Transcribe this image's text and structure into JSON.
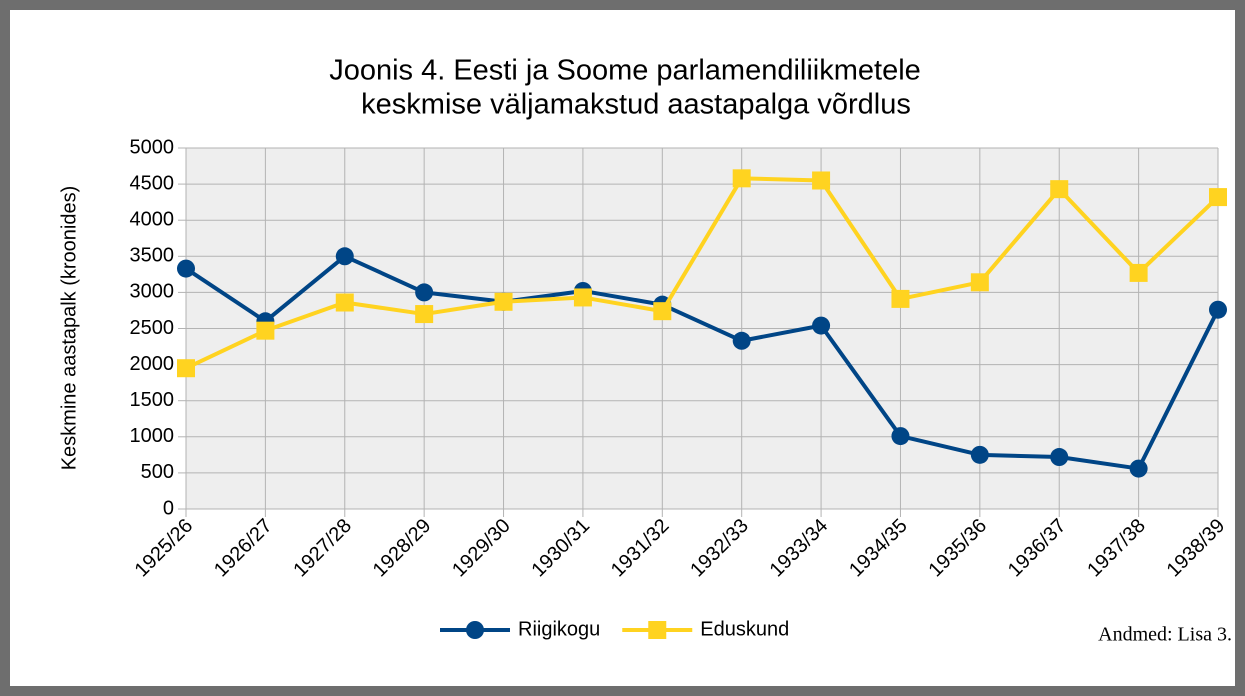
{
  "chart_data": {
    "type": "line",
    "title": [
      "Joonis 4. Eesti ja Soome parlamendiliikmetele",
      "keskmise väljamakstud aastapalga võrdlus"
    ],
    "ylabel": "Keskmine aastapalk (kroonides)",
    "annotation": "Andmed: Lisa  3.",
    "categories": [
      "1925/26",
      "1926/27",
      "1927/28",
      "1928/29",
      "1929/30",
      "1930/31",
      "1931/32",
      "1932/33",
      "1933/34",
      "1934/35",
      "1935/36",
      "1936/37",
      "1937/38",
      "1938/39"
    ],
    "series": [
      {
        "name": "Riigikogu",
        "color": "#004586",
        "marker": "circle",
        "values": [
          3330,
          2600,
          3500,
          3000,
          2870,
          3020,
          2830,
          2330,
          2540,
          1010,
          750,
          720,
          560,
          2760
        ]
      },
      {
        "name": "Eduskund",
        "color": "#ffd320",
        "marker": "square",
        "values": [
          1950,
          2470,
          2860,
          2700,
          2870,
          2930,
          2740,
          4580,
          4550,
          2910,
          3140,
          4430,
          3270,
          4320
        ]
      }
    ],
    "ylim": [
      0,
      5000
    ],
    "yticks": [
      0,
      500,
      1000,
      1500,
      2000,
      2500,
      3000,
      3500,
      4000,
      4500,
      5000
    ],
    "grid": true,
    "legend": "bottom"
  }
}
